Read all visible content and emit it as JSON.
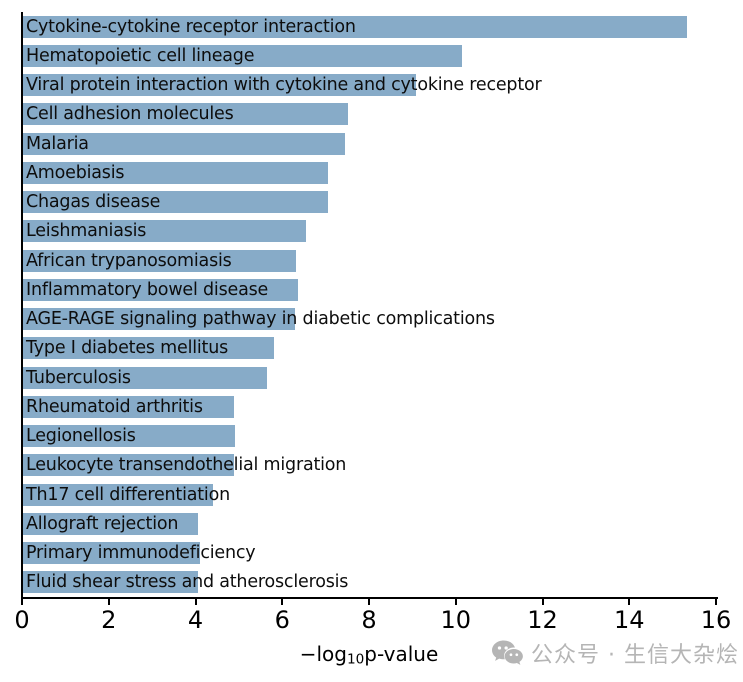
{
  "figure": {
    "background": "#ffffff",
    "watermark": {
      "icon": "wechat-icon",
      "text": "公众号 · 生信大杂烩",
      "color": "#b5b5b5"
    }
  },
  "chart_data": {
    "type": "bar",
    "orientation": "horizontal",
    "title": "",
    "xlabel": "−log₁₀p-value",
    "xlabel_parts": {
      "prefix": "−log",
      "sub": "10",
      "suffix": "p-value"
    },
    "xlim": [
      0,
      16
    ],
    "xticks": [
      0,
      2,
      4,
      6,
      8,
      10,
      12,
      14,
      16
    ],
    "grid": false,
    "legend": "none",
    "bar_color": "#87abc8",
    "label_position": "inside-left-overflowing",
    "categories": [
      "Cytokine-cytokine receptor interaction",
      "Hematopoietic cell lineage",
      "Viral protein interaction with cytokine and cytokine receptor",
      "Cell adhesion molecules",
      "Malaria",
      "Amoebiasis",
      "Chagas disease",
      "Leishmaniasis",
      "African trypanosomiasis",
      "Inflammatory bowel disease",
      "AGE-RAGE signaling pathway in diabetic complications",
      "Type I diabetes mellitus",
      "Tuberculosis",
      "Rheumatoid arthritis",
      "Legionellosis",
      "Leukocyte transendothelial migration",
      "Th17 cell differentiation",
      "Allograft rejection",
      "Primary immunodeficiency",
      "Fluid shear stress and atherosclerosis"
    ],
    "values": [
      15.34,
      10.14,
      9.07,
      7.51,
      7.43,
      7.04,
      7.04,
      6.54,
      6.31,
      6.34,
      6.28,
      5.8,
      5.64,
      4.87,
      4.9,
      4.87,
      4.38,
      4.03,
      4.09,
      4.05
    ]
  }
}
